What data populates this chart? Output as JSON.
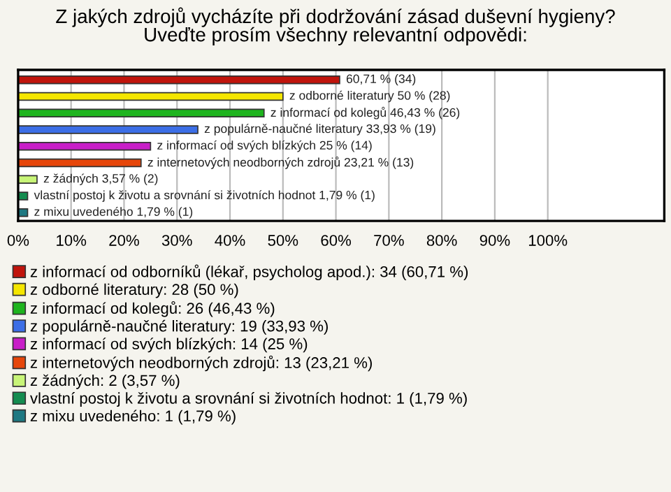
{
  "chart_data": {
    "type": "bar",
    "orientation": "horizontal",
    "title": "Z jakých zdrojů vycházíte při dodržování zásad duševní hygieny?\nUveďte prosím všechny relevantní odpovědi:",
    "categories": [
      null,
      null,
      null,
      null,
      null,
      null,
      null,
      null,
      null
    ],
    "xlim": [
      0,
      122
    ],
    "xticks": [
      {
        "value": 0,
        "label": "0%"
      },
      {
        "value": 10,
        "label": "10%"
      },
      {
        "value": 20,
        "label": "20%"
      },
      {
        "value": 30,
        "label": "30%"
      },
      {
        "value": 40,
        "label": "40%"
      },
      {
        "value": 50,
        "label": "50%"
      },
      {
        "value": 60,
        "label": "60%"
      },
      {
        "value": 70,
        "label": "70%"
      },
      {
        "value": 80,
        "label": "80%"
      },
      {
        "value": 90,
        "label": "90%"
      },
      {
        "value": 100,
        "label": "100%"
      }
    ],
    "grid": "x",
    "legend": "bottom",
    "series": [
      {
        "name": "z informací od odborníků (lékař, psycholog apod.): 34 (60,71 %)",
        "color": "#c0140c",
        "values": [
          60.71,
          null,
          null,
          null,
          null,
          null,
          null,
          null,
          null
        ],
        "value_labels": [
          "60,71 % (34)",
          null,
          null,
          null,
          null,
          null,
          null,
          null,
          null
        ]
      },
      {
        "name": "z odborné literatury: 28 (50 %)",
        "color": "#f5e600",
        "values": [
          null,
          50,
          null,
          null,
          null,
          null,
          null,
          null,
          null
        ],
        "value_labels": [
          null,
          "z odborné literatury 50 % (28)",
          null,
          null,
          null,
          null,
          null,
          null,
          null
        ]
      },
      {
        "name": "z informací od kolegů: 26 (46,43 %)",
        "color": "#1eb41e",
        "values": [
          null,
          null,
          46.43,
          null,
          null,
          null,
          null,
          null,
          null
        ],
        "value_labels": [
          null,
          null,
          "z informací od kolegů 46,43 % (26)",
          null,
          null,
          null,
          null,
          null,
          null
        ]
      },
      {
        "name": "z populárně-naučné literatury: 19 (33,93 %)",
        "color": "#3c6ee6",
        "values": [
          null,
          null,
          null,
          33.93,
          null,
          null,
          null,
          null,
          null
        ],
        "value_labels": [
          null,
          null,
          null,
          "z populárně-naučné literatury 33,93 % (19)",
          null,
          null,
          null,
          null,
          null
        ]
      },
      {
        "name": "z informací od svých blízkých: 14 (25 %)",
        "color": "#c81ec8",
        "values": [
          null,
          null,
          null,
          null,
          25,
          null,
          null,
          null,
          null
        ],
        "value_labels": [
          null,
          null,
          null,
          null,
          "z informací od svých blízkých 25 % (14)",
          null,
          null,
          null,
          null
        ]
      },
      {
        "name": "z internetových neodborných zdrojů: 13 (23,21 %)",
        "color": "#e6460a",
        "values": [
          null,
          null,
          null,
          null,
          null,
          23.21,
          null,
          null,
          null
        ],
        "value_labels": [
          null,
          null,
          null,
          null,
          null,
          "z internetových neodborných zdrojů 23,21 % (13)",
          null,
          null,
          null
        ]
      },
      {
        "name": "z žádných: 2 (3,57 %)",
        "color": "#c8f578",
        "values": [
          null,
          null,
          null,
          null,
          null,
          null,
          3.57,
          null,
          null
        ],
        "value_labels": [
          null,
          null,
          null,
          null,
          null,
          null,
          "z žádných 3,57 % (2)",
          null,
          null
        ]
      },
      {
        "name": "vlastní postoj k životu a srovnání si životních hodnot: 1 (1,79 %)",
        "color": "#148c50",
        "values": [
          null,
          null,
          null,
          null,
          null,
          null,
          null,
          1.79,
          null
        ],
        "value_labels": [
          null,
          null,
          null,
          null,
          null,
          null,
          null,
          "vlastní postoj k životu a srovnání si životních hodnot 1,79 % (1)",
          null
        ]
      },
      {
        "name": "z mixu uvedeného: 1 (1,79 %)",
        "color": "#1e7882",
        "values": [
          null,
          null,
          null,
          null,
          null,
          null,
          null,
          null,
          1.79
        ],
        "value_labels": [
          null,
          null,
          null,
          null,
          null,
          null,
          null,
          null,
          "z mixu uvedeného 1,79 % (1)"
        ]
      }
    ]
  }
}
